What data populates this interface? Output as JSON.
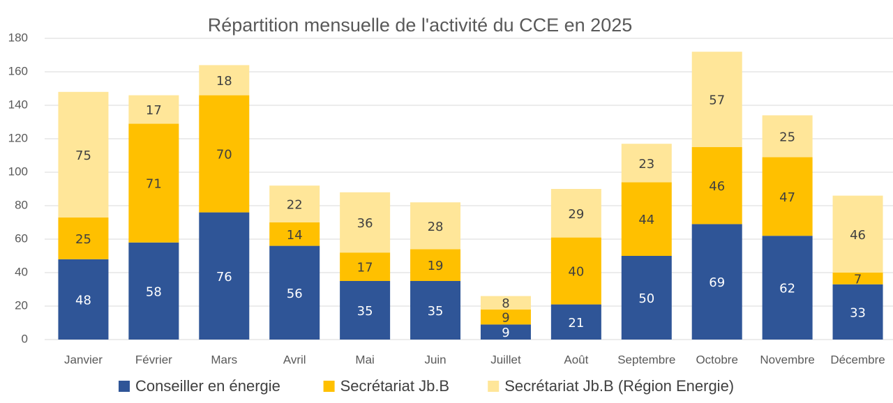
{
  "chart_data": {
    "type": "stacked_bar",
    "title": "Répartition mensuelle de l'activité du CCE en 2025",
    "categories": [
      "Janvier",
      "Février",
      "Mars",
      "Avril",
      "Mai",
      "Juin",
      "Juillet",
      "Août",
      "Septembre",
      "Octobre",
      "Novembre",
      "Décembre"
    ],
    "series": [
      {
        "name": "Conseiller en énergie",
        "color": "#2f5597",
        "label_color": "#ffffff",
        "values": [
          48,
          58,
          76,
          56,
          35,
          35,
          9,
          21,
          50,
          69,
          62,
          33
        ]
      },
      {
        "name": "Secrétariat Jb.B",
        "color": "#ffc000",
        "label_color": "#404040",
        "values": [
          25,
          71,
          70,
          14,
          17,
          19,
          9,
          40,
          44,
          46,
          47,
          7
        ]
      },
      {
        "name": "Secrétariat Jb.B (Région Energie)",
        "color": "#ffe699",
        "label_color": "#404040",
        "values": [
          75,
          17,
          18,
          22,
          36,
          28,
          8,
          29,
          23,
          57,
          25,
          46
        ]
      }
    ],
    "ylim": [
      0,
      180
    ],
    "yticks": [
      0,
      20,
      40,
      60,
      80,
      100,
      120,
      140,
      160,
      180
    ],
    "grid": true,
    "legend": "bottom"
  }
}
